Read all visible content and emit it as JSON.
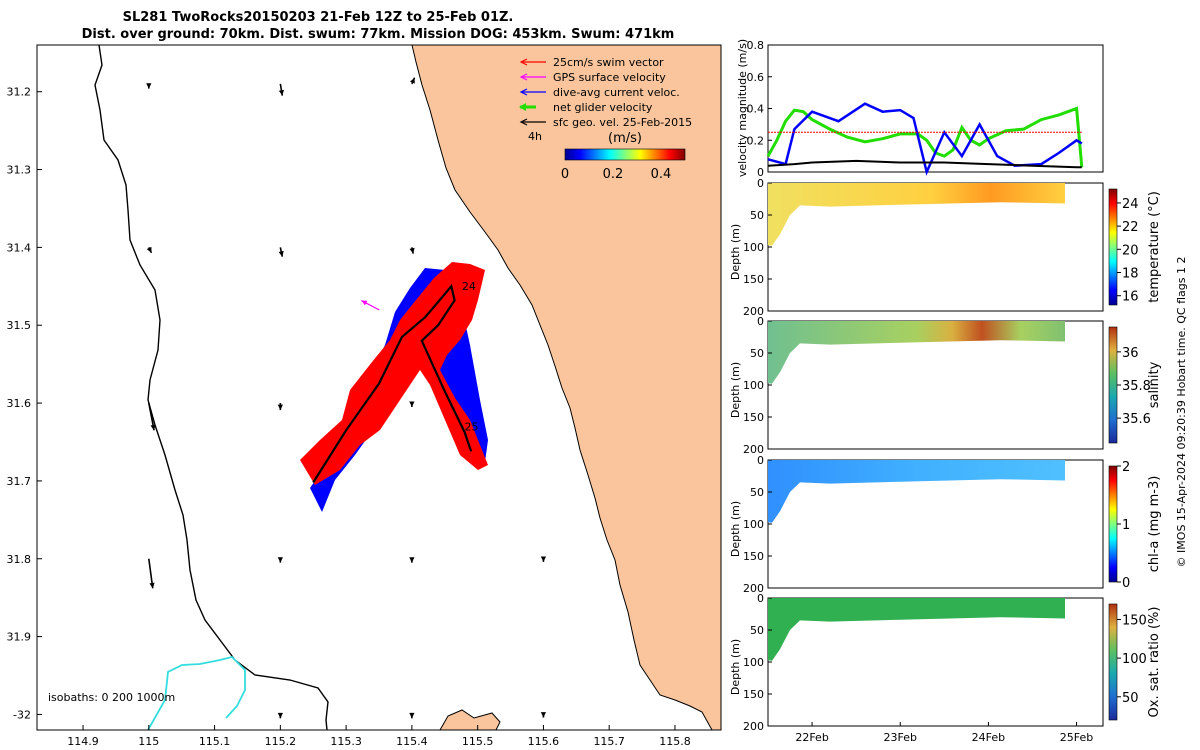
{
  "title_line1": "SL281 TwoRocks20150203 21-Feb 12Z to 25-Feb 01Z.",
  "title_line2": "Dist. over ground: 70km. Dist. swum: 77km. Mission DOG: 453km. Swum: 471km",
  "credit": "© IMOS 15-Apr-2024 09:20:39 Hobart time. QC flags 1  2",
  "colors": {
    "land": "#fac59d",
    "swim": "#ff0000",
    "gps": "#ff00ff",
    "current": "#0000ff",
    "net": "#22dd00",
    "sfc": "#000000",
    "isobath": "#33dddd"
  },
  "chart_data": [
    {
      "type": "scatter",
      "name": "map",
      "xlim": [
        114.83,
        115.87
      ],
      "ylim": [
        -32.02,
        -31.14
      ],
      "xticks": [
        "114.9",
        "115",
        "115.1",
        "115.2",
        "115.3",
        "115.4",
        "115.5",
        "115.6",
        "115.7",
        "115.8"
      ],
      "xtick_values": [
        114.9,
        115.0,
        115.1,
        115.2,
        115.3,
        115.4,
        115.5,
        115.6,
        115.7,
        115.8
      ],
      "yticks": [
        "31.2",
        "31.3",
        "31.4",
        "31.5",
        "31.6",
        "31.7",
        "31.8",
        "31.9",
        "-32"
      ],
      "ytick_values": [
        -31.2,
        -31.3,
        -31.4,
        -31.5,
        -31.6,
        -31.7,
        -31.8,
        -31.9,
        -32.0
      ],
      "legend": [
        {
          "label": "25cm/s swim vector",
          "color": "#ff0000"
        },
        {
          "label": "GPS surface velocity",
          "color": "#ff00ff"
        },
        {
          "label": "dive-avg current veloc.",
          "color": "#0000ff"
        },
        {
          "label": "net glider velocity",
          "color": "#22dd00"
        },
        {
          "label": "sfc geo. vel. 25-Feb-2015",
          "color": "#000000"
        }
      ],
      "legend_position": "top-right",
      "colorbar_label": "(m/s)",
      "colorbar_ticks": [
        "0",
        "0.2",
        "0.4"
      ],
      "colorbar_tick_values": [
        0,
        0.2,
        0.4
      ],
      "colorbar_range": [
        0,
        0.5
      ],
      "vector_time_label": "4h",
      "isobaths_label": "isobaths: 0   200  1000m",
      "day_labels": [
        {
          "text": "24",
          "lon": 115.476,
          "lat": -31.455
        },
        {
          "text": "25",
          "lon": 115.48,
          "lat": -31.635
        }
      ],
      "track": [
        {
          "lon": 115.25,
          "lat": -31.702
        },
        {
          "lon": 115.3,
          "lat": -31.635
        },
        {
          "lon": 115.35,
          "lat": -31.575
        },
        {
          "lon": 115.385,
          "lat": -31.515
        },
        {
          "lon": 115.42,
          "lat": -31.49
        },
        {
          "lon": 115.44,
          "lat": -31.47
        },
        {
          "lon": 115.46,
          "lat": -31.45
        },
        {
          "lon": 115.465,
          "lat": -31.468
        },
        {
          "lon": 115.44,
          "lat": -31.5
        },
        {
          "lon": 115.415,
          "lat": -31.52
        },
        {
          "lon": 115.45,
          "lat": -31.585
        },
        {
          "lon": 115.48,
          "lat": -31.637
        },
        {
          "lon": 115.49,
          "lat": -31.662
        }
      ],
      "gps_vector": {
        "lon": 115.335,
        "lat": -31.47,
        "dlon": -0.027,
        "dlat": 0.012
      },
      "sfc_vectors": [
        {
          "lon": 115.0,
          "lat": -31.19,
          "dlon": 0.0,
          "dlat": -0.006
        },
        {
          "lon": 115.2,
          "lat": -31.19,
          "dlon": 0.003,
          "dlat": -0.015
        },
        {
          "lon": 115.4,
          "lat": -31.19,
          "dlon": 0.004,
          "dlat": 0.008
        },
        {
          "lon": 115.2,
          "lat": -31.4,
          "dlon": 0.003,
          "dlat": -0.012
        },
        {
          "lon": 115.0,
          "lat": -31.4,
          "dlon": 0.004,
          "dlat": -0.007
        },
        {
          "lon": 115.4,
          "lat": -31.4,
          "dlon": 0.002,
          "dlat": -0.008
        },
        {
          "lon": 115.2,
          "lat": -31.6,
          "dlon": 0.0,
          "dlat": -0.009
        },
        {
          "lon": 115.4,
          "lat": -31.6,
          "dlon": 0.0,
          "dlat": -0.005
        },
        {
          "lon": 115.0,
          "lat": -31.6,
          "dlon": 0.008,
          "dlat": -0.035
        },
        {
          "lon": 115.2,
          "lat": -31.8,
          "dlon": 0.0,
          "dlat": -0.005
        },
        {
          "lon": 115.4,
          "lat": -31.8,
          "dlon": 0.0,
          "dlat": -0.005
        },
        {
          "lon": 115.0,
          "lat": -31.8,
          "dlon": 0.006,
          "dlat": -0.038
        },
        {
          "lon": 115.2,
          "lat": -32.0,
          "dlon": 0.0,
          "dlat": -0.005
        },
        {
          "lon": 115.4,
          "lat": -32.0,
          "dlon": 0.0,
          "dlat": -0.005
        },
        {
          "lon": 115.6,
          "lat": -31.8,
          "dlon": 0.0,
          "dlat": -0.004
        },
        {
          "lon": 115.6,
          "lat": -32.0,
          "dlon": 0.0,
          "dlat": -0.004
        }
      ]
    },
    {
      "type": "line",
      "name": "velocity",
      "ylabel": "velocity magnitude (m/s)",
      "ylim": [
        0,
        0.8
      ],
      "yticks": [
        "0",
        "0.2",
        "0.4",
        "0.6",
        "0.8"
      ],
      "ytick_values": [
        0,
        0.2,
        0.4,
        0.6,
        0.8
      ],
      "xlim": [
        21.5,
        25.3
      ],
      "series": [
        {
          "color": "#22dd00",
          "x": [
            21.5,
            21.6,
            21.7,
            21.8,
            21.9,
            22.0,
            22.2,
            22.4,
            22.6,
            22.8,
            23.0,
            23.2,
            23.3,
            23.4,
            23.5,
            23.6,
            23.7,
            23.8,
            23.9,
            24.0,
            24.2,
            24.4,
            24.6,
            24.8,
            25.0,
            25.06
          ],
          "y": [
            0.1,
            0.2,
            0.32,
            0.39,
            0.38,
            0.33,
            0.27,
            0.22,
            0.19,
            0.21,
            0.24,
            0.24,
            0.2,
            0.12,
            0.1,
            0.14,
            0.28,
            0.2,
            0.17,
            0.21,
            0.26,
            0.27,
            0.33,
            0.36,
            0.4,
            0.03
          ]
        },
        {
          "color": "#0000ff",
          "x": [
            21.5,
            21.7,
            21.8,
            22.0,
            22.3,
            22.6,
            22.8,
            23.0,
            23.15,
            23.3,
            23.5,
            23.7,
            23.9,
            24.1,
            24.3,
            24.6,
            24.8,
            25.0,
            25.06
          ],
          "y": [
            0.08,
            0.05,
            0.27,
            0.38,
            0.32,
            0.43,
            0.38,
            0.39,
            0.34,
            0.0,
            0.25,
            0.1,
            0.3,
            0.1,
            0.04,
            0.05,
            0.12,
            0.2,
            0.18
          ]
        },
        {
          "color": "#000000",
          "x": [
            21.5,
            21.8,
            22.0,
            22.5,
            23.0,
            23.5,
            24.0,
            24.5,
            25.0,
            25.06
          ],
          "y": [
            0.04,
            0.05,
            0.06,
            0.07,
            0.06,
            0.06,
            0.05,
            0.04,
            0.03,
            0.03
          ]
        },
        {
          "color": "#ff0000",
          "x": [
            21.5,
            25.06
          ],
          "y": [
            0.25,
            0.25
          ]
        }
      ]
    },
    {
      "type": "heatmap",
      "name": "temperature",
      "ylabel": "Depth (m)",
      "clabel": "temperature (°C)",
      "ylim": [
        0,
        200
      ],
      "yticks": [
        "0",
        "50",
        "100",
        "150",
        "200"
      ],
      "ytick_values": [
        0,
        50,
        100,
        150,
        200
      ],
      "crange": [
        15.2,
        25.2
      ],
      "cticks": [
        "16",
        "18",
        "20",
        "22",
        "24"
      ],
      "ctick_values": [
        16,
        18,
        20,
        22,
        24
      ]
    },
    {
      "type": "heatmap",
      "name": "salinity",
      "ylabel": "Depth (m)",
      "clabel": "salinity",
      "ylim": [
        0,
        200
      ],
      "yticks": [
        "0",
        "50",
        "100",
        "150",
        "200"
      ],
      "ytick_values": [
        0,
        50,
        100,
        150,
        200
      ],
      "crange": [
        35.45,
        36.15
      ],
      "cticks": [
        "35.6",
        "35.8",
        "36"
      ],
      "ctick_values": [
        35.6,
        35.8,
        36.0
      ]
    },
    {
      "type": "heatmap",
      "name": "chlorophyll",
      "ylabel": "Depth (m)",
      "clabel": "chl-a (mg m-3)",
      "ylim": [
        0,
        200
      ],
      "yticks": [
        "0",
        "50",
        "100",
        "150",
        "200"
      ],
      "ytick_values": [
        0,
        50,
        100,
        150,
        200
      ],
      "crange": [
        0,
        2
      ],
      "cticks": [
        "0",
        "1",
        "2"
      ],
      "ctick_values": [
        0,
        1,
        2
      ]
    },
    {
      "type": "heatmap",
      "name": "oxygen",
      "ylabel": "Depth (m)",
      "clabel": "Ox. sat. ratio (%)",
      "ylim": [
        0,
        200
      ],
      "yticks": [
        "0",
        "50",
        "100",
        "150",
        "200"
      ],
      "ytick_values": [
        0,
        50,
        100,
        150,
        200
      ],
      "crange": [
        20,
        170
      ],
      "cticks": [
        "50",
        "100",
        "150"
      ],
      "ctick_values": [
        50,
        100,
        150
      ],
      "xticks": [
        "22Feb",
        "23Feb",
        "24Feb",
        "25Feb"
      ],
      "xtick_values": [
        22,
        23,
        24,
        25
      ]
    }
  ]
}
